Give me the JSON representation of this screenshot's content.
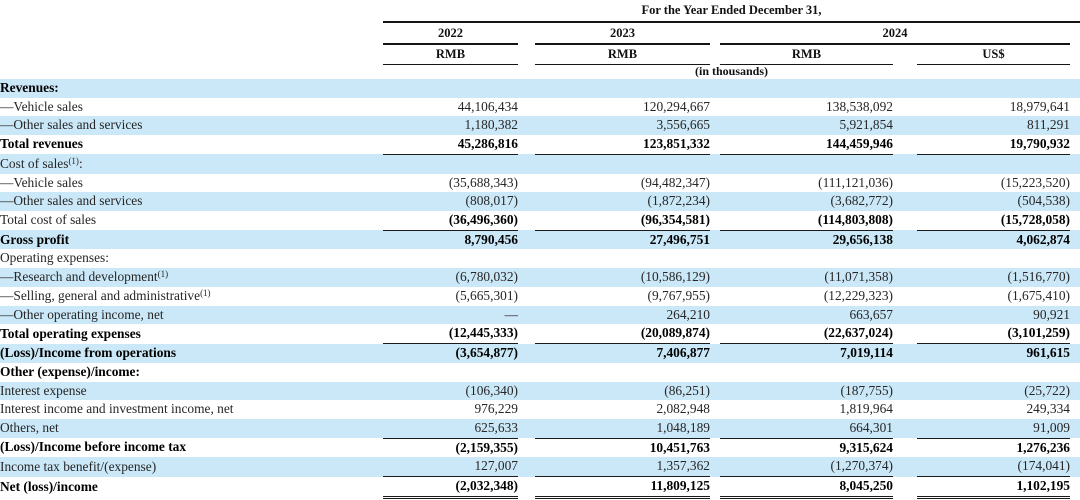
{
  "header": {
    "period_title": "For the Year Ended December 31,",
    "years": [
      "2022",
      "2023",
      "2024"
    ],
    "currencies": [
      "RMB",
      "RMB",
      "RMB",
      "US$"
    ],
    "units_note": "(in thousands)"
  },
  "colors": {
    "stripe": "#cbe8f8",
    "rule": "#1a1a1a",
    "background": "#ffffff"
  },
  "table": {
    "rows": [
      {
        "label": "Revenues:",
        "label_bold": true,
        "stripe": true,
        "values": [
          "",
          "",
          "",
          ""
        ]
      },
      {
        "label": "—Vehicle sales",
        "stripe": false,
        "values": [
          "44,106,434",
          "120,294,667",
          "138,538,092",
          "18,979,641"
        ]
      },
      {
        "label": "—Other sales and services",
        "stripe": true,
        "values": [
          "1,180,382",
          "3,556,665",
          "5,921,854",
          "811,291"
        ]
      },
      {
        "label": "Total revenues",
        "label_bold": true,
        "values_bold": true,
        "stripe": false,
        "underline": "single",
        "values": [
          "45,286,816",
          "123,851,332",
          "144,459,946",
          "19,790,932"
        ]
      },
      {
        "label": "Cost of sales",
        "sup": "(1)",
        "after": ":",
        "stripe": true,
        "values": [
          "",
          "",
          "",
          ""
        ]
      },
      {
        "label": "—Vehicle sales",
        "stripe": false,
        "values": [
          "(35,688,343)",
          "(94,482,347)",
          "(111,121,036)",
          "(15,223,520)"
        ]
      },
      {
        "label": "—Other sales and services",
        "stripe": true,
        "values": [
          "(808,017)",
          "(1,872,234)",
          "(3,682,772)",
          "(504,538)"
        ]
      },
      {
        "label": "Total cost of sales",
        "values_bold": true,
        "stripe": false,
        "underline": "single",
        "values": [
          "(36,496,360)",
          "(96,354,581)",
          "(114,803,808)",
          "(15,728,058)"
        ]
      },
      {
        "label": "Gross profit",
        "label_bold": true,
        "values_bold": true,
        "stripe": true,
        "values": [
          "8,790,456",
          "27,496,751",
          "29,656,138",
          "4,062,874"
        ]
      },
      {
        "label": "Operating expenses:",
        "stripe": false,
        "values": [
          "",
          "",
          "",
          ""
        ]
      },
      {
        "label": "—Research and development",
        "sup": "(1)",
        "stripe": true,
        "values": [
          "(6,780,032)",
          "(10,586,129)",
          "(11,071,358)",
          "(1,516,770)"
        ]
      },
      {
        "label": "—Selling, general and administrative",
        "sup": "(1)",
        "stripe": false,
        "values": [
          "(5,665,301)",
          "(9,767,955)",
          "(12,229,323)",
          "(1,675,410)"
        ]
      },
      {
        "label": "—Other operating income, net",
        "stripe": true,
        "values": [
          "—",
          "264,210",
          "663,657",
          "90,921"
        ]
      },
      {
        "label": "Total operating expenses",
        "label_bold": true,
        "values_bold": true,
        "stripe": false,
        "underline": "single",
        "values": [
          "(12,445,333)",
          "(20,089,874)",
          "(22,637,024)",
          "(3,101,259)"
        ]
      },
      {
        "label": "(Loss)/Income from operations",
        "label_bold": true,
        "values_bold": true,
        "stripe": true,
        "values": [
          "(3,654,877)",
          "7,406,877",
          "7,019,114",
          "961,615"
        ]
      },
      {
        "label": "Other (expense)/income:",
        "label_bold": true,
        "stripe": false,
        "values": [
          "",
          "",
          "",
          ""
        ]
      },
      {
        "label": "Interest expense",
        "stripe": true,
        "values": [
          "(106,340)",
          "(86,251)",
          "(187,755)",
          "(25,722)"
        ]
      },
      {
        "label": "Interest income and investment income, net",
        "stripe": false,
        "values": [
          "976,229",
          "2,082,948",
          "1,819,964",
          "249,334"
        ]
      },
      {
        "label": "Others, net",
        "stripe": true,
        "underline": "single",
        "values": [
          "625,633",
          "1,048,189",
          "664,301",
          "91,009"
        ]
      },
      {
        "label": "(Loss)/Income before income tax",
        "label_bold": true,
        "values_bold": true,
        "stripe": false,
        "values": [
          "(2,159,355)",
          "10,451,763",
          "9,315,624",
          "1,276,236"
        ]
      },
      {
        "label": "Income tax benefit/(expense)",
        "stripe": true,
        "underline": "single",
        "values": [
          "127,007",
          "1,357,362",
          "(1,270,374)",
          "(174,041)"
        ]
      },
      {
        "label": "Net (loss)/income",
        "label_bold": true,
        "values_bold": true,
        "stripe": false,
        "underline": "double",
        "values": [
          "(2,032,348)",
          "11,809,125",
          "8,045,250",
          "1,102,195"
        ]
      }
    ]
  }
}
